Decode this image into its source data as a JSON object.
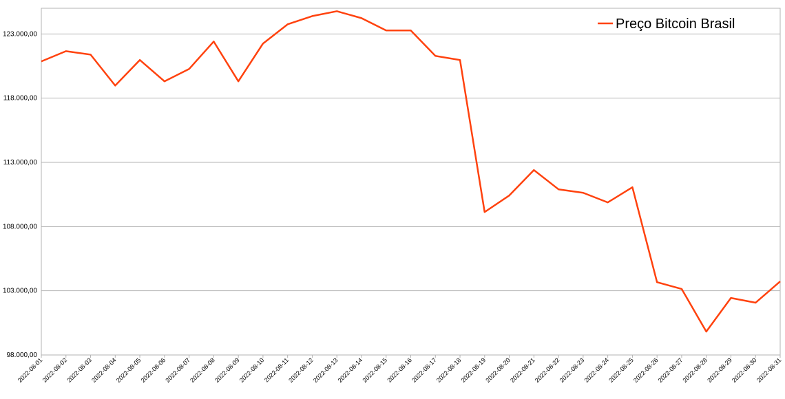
{
  "chart_data": {
    "type": "line",
    "x": [
      "2022-08-01",
      "2022-08-02",
      "2022-08-03",
      "2022-08-04",
      "2022-08-05",
      "2022-08-06",
      "2022-08-07",
      "2022-08-08",
      "2022-08-09",
      "2022-08-10",
      "2022-08-11",
      "2022-08-12",
      "2022-08-13",
      "2022-08-14",
      "2022-08-15",
      "2022-08-16",
      "2022-08-17",
      "2022-08-18",
      "2022-08-19",
      "2022-08-20",
      "2022-08-21",
      "2022-08-22",
      "2022-08-23",
      "2022-08-24",
      "2022-08-25",
      "2022-08-26",
      "2022-08-27",
      "2022-08-28",
      "2022-08-29",
      "2022-08-30",
      "2022-08-31"
    ],
    "series": [
      {
        "name": "Preço Bitcoin Brasil",
        "color": "#ff420e",
        "values": [
          120860,
          121660,
          121390,
          118980,
          120970,
          119310,
          120270,
          122410,
          119310,
          122250,
          123750,
          124390,
          124770,
          124230,
          123270,
          123270,
          121290,
          120970,
          109130,
          110420,
          112400,
          110900,
          110630,
          109880,
          111060,
          103670,
          103140,
          99820,
          102440,
          102070,
          103730
        ]
      }
    ],
    "ylim": [
      98000,
      125000
    ],
    "yticks": [
      {
        "value": 98000,
        "label": "98.000,00"
      },
      {
        "value": 103000,
        "label": "103.000,00"
      },
      {
        "value": 108000,
        "label": "108.000,00"
      },
      {
        "value": 113000,
        "label": "113.000,00"
      },
      {
        "value": 118000,
        "label": "118.000,00"
      },
      {
        "value": 123000,
        "label": "123.000,00"
      }
    ],
    "grid": true,
    "legend": "top-right"
  }
}
